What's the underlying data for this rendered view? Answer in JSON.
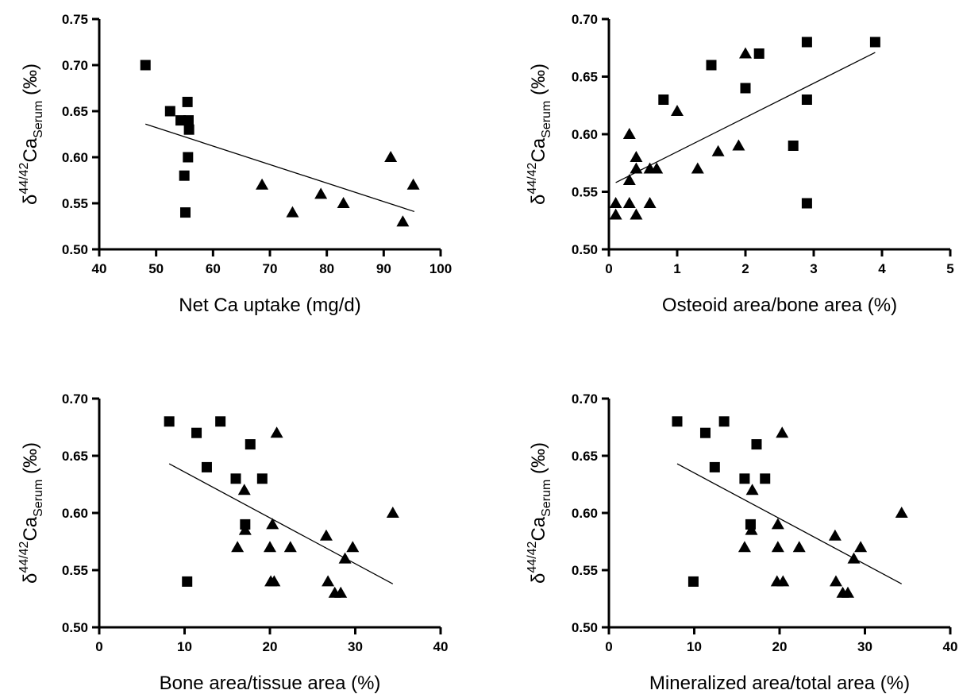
{
  "chart_data": [
    {
      "type": "scatter",
      "xlabel": "Net Ca uptake (mg/d)",
      "ylabel": {
        "prefix": "δ",
        "sup": "44/42",
        "main": "Ca",
        "sub": "Serum",
        "unit": " (‰)"
      },
      "xlim": [
        40,
        105
      ],
      "ylim": [
        0.5,
        0.75
      ],
      "x_ticks": [
        "40",
        "50",
        "60",
        "70",
        "80",
        "90",
        "100"
      ],
      "y_ticks": [
        "0.50",
        "0.55",
        "0.60",
        "0.65",
        "0.70",
        "0.75"
      ],
      "trendline": {
        "x": [
          48.8,
          100
        ],
        "y": [
          0.636,
          0.541
        ]
      },
      "series": [
        {
          "marker": "square",
          "x": [
            48.8,
            53.5,
            55.5,
            56.8,
            57.0,
            57.1,
            56.9,
            56.2,
            56.4
          ],
          "y": [
            0.7,
            0.65,
            0.64,
            0.66,
            0.64,
            0.63,
            0.6,
            0.58,
            0.54
          ]
        },
        {
          "marker": "triangle",
          "x": [
            71.0,
            76.8,
            82.2,
            86.5,
            95.5,
            97.8,
            99.8
          ],
          "y": [
            0.57,
            0.54,
            0.56,
            0.55,
            0.6,
            0.53,
            0.57
          ]
        }
      ]
    },
    {
      "type": "scatter",
      "xlabel": "Osteoid area/bone area (%)",
      "ylabel": {
        "prefix": "δ",
        "sup": "44/42",
        "main": "Ca",
        "sub": "Serum",
        "unit": " (‰)"
      },
      "xlim": [
        0,
        5
      ],
      "ylim": [
        0.5,
        0.7
      ],
      "x_ticks": [
        "0",
        "1",
        "2",
        "3",
        "4",
        "5"
      ],
      "y_ticks": [
        "0.50",
        "0.55",
        "0.60",
        "0.65",
        "0.70"
      ],
      "trendline": {
        "x": [
          0.1,
          3.9
        ],
        "y": [
          0.558,
          0.671
        ]
      },
      "series": [
        {
          "marker": "square",
          "x": [
            0.8,
            1.5,
            2.0,
            2.2,
            2.7,
            2.9,
            2.9,
            2.9,
            3.9
          ],
          "y": [
            0.63,
            0.66,
            0.64,
            0.67,
            0.59,
            0.68,
            0.63,
            0.54,
            0.68
          ]
        },
        {
          "marker": "triangle",
          "x": [
            0.1,
            0.1,
            0.3,
            0.3,
            0.3,
            0.4,
            0.4,
            0.4,
            0.6,
            0.6,
            0.7,
            1.0,
            1.3,
            1.6,
            1.9,
            2.0
          ],
          "y": [
            0.54,
            0.53,
            0.6,
            0.56,
            0.54,
            0.58,
            0.57,
            0.53,
            0.57,
            0.54,
            0.57,
            0.62,
            0.57,
            0.585,
            0.59,
            0.67
          ]
        }
      ]
    },
    {
      "type": "scatter",
      "xlabel": "Bone area/tissue area (%)",
      "ylabel": {
        "prefix": "δ",
        "sup": "44/42",
        "main": "Ca",
        "sub": "Serum",
        "unit": " (‰)"
      },
      "xlim": [
        0,
        40
      ],
      "ylim": [
        0.5,
        0.7
      ],
      "x_ticks": [
        "0",
        "10",
        "20",
        "30",
        "40"
      ],
      "y_ticks": [
        "0.50",
        "0.55",
        "0.60",
        "0.65",
        "0.70"
      ],
      "trendline": {
        "x": [
          8.2,
          34.4
        ],
        "y": [
          0.643,
          0.538
        ]
      },
      "series": [
        {
          "marker": "square",
          "x": [
            8.2,
            11.4,
            12.6,
            14.2,
            16.0,
            17.1,
            17.7,
            19.1,
            10.3
          ],
          "y": [
            0.68,
            0.67,
            0.64,
            0.68,
            0.63,
            0.59,
            0.66,
            0.63,
            0.54
          ]
        },
        {
          "marker": "triangle",
          "x": [
            20.8,
            17.0,
            17.1,
            16.2,
            20.3,
            20.0,
            20.1,
            20.5,
            22.4,
            26.6,
            26.8,
            27.6,
            28.3,
            28.8,
            29.7,
            34.4
          ],
          "y": [
            0.67,
            0.62,
            0.585,
            0.57,
            0.59,
            0.57,
            0.54,
            0.54,
            0.57,
            0.58,
            0.54,
            0.53,
            0.53,
            0.56,
            0.57,
            0.6
          ]
        }
      ]
    },
    {
      "type": "scatter",
      "xlabel": "Mineralized area/total area (%)",
      "ylabel": {
        "prefix": "δ",
        "sup": "44/42",
        "main": "Ca",
        "sub": "Serum",
        "unit": " (‰)"
      },
      "xlim": [
        0,
        40
      ],
      "ylim": [
        0.5,
        0.7
      ],
      "x_ticks": [
        "0",
        "10",
        "20",
        "30",
        "40"
      ],
      "y_ticks": [
        "0.50",
        "0.55",
        "0.60",
        "0.65",
        "0.70"
      ],
      "trendline": {
        "x": [
          8.0,
          34.3
        ],
        "y": [
          0.643,
          0.538
        ]
      },
      "series": [
        {
          "marker": "square",
          "x": [
            8.0,
            11.3,
            12.4,
            13.5,
            15.9,
            16.6,
            17.3,
            18.3,
            9.9
          ],
          "y": [
            0.68,
            0.67,
            0.64,
            0.68,
            0.63,
            0.59,
            0.66,
            0.63,
            0.54
          ]
        },
        {
          "marker": "triangle",
          "x": [
            20.3,
            16.8,
            16.7,
            15.9,
            19.8,
            19.8,
            19.7,
            20.4,
            22.3,
            26.5,
            26.6,
            27.4,
            28.0,
            28.7,
            29.5,
            34.3
          ],
          "y": [
            0.67,
            0.62,
            0.585,
            0.57,
            0.59,
            0.57,
            0.54,
            0.54,
            0.57,
            0.58,
            0.54,
            0.53,
            0.53,
            0.56,
            0.57,
            0.6
          ]
        }
      ]
    }
  ]
}
